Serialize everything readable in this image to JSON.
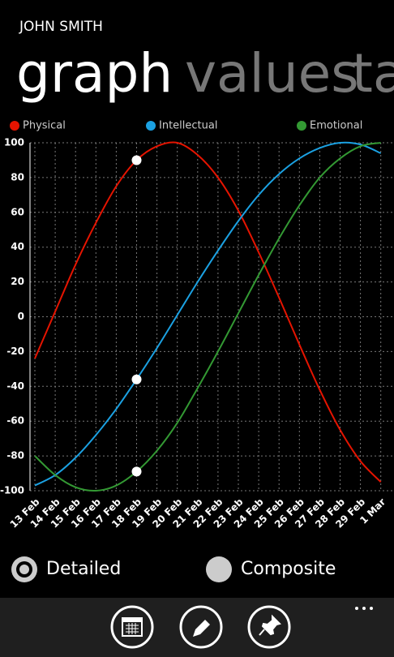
{
  "header": {
    "user": "JOHN SMITH"
  },
  "pivot": [
    "graph",
    "values",
    "ta"
  ],
  "chart_data": {
    "type": "line",
    "categories": [
      "13 Feb",
      "14 Feb",
      "15 Feb",
      "16 Feb",
      "17 Feb",
      "18 Feb",
      "19 Feb",
      "20 Feb",
      "21 Feb",
      "22 Feb",
      "23 Feb",
      "24 Feb",
      "25 Feb",
      "26 Feb",
      "27 Feb",
      "28 Feb",
      "29 Feb",
      "1 Mar"
    ],
    "series": [
      {
        "name": "Physical",
        "color": "#e51400",
        "values": [
          -24,
          3,
          30,
          54,
          75,
          90,
          98,
          100,
          93,
          80,
          61,
          37,
          11,
          -16,
          -42,
          -65,
          -83,
          -95
        ]
      },
      {
        "name": "Intellectual",
        "color": "#1ba1e2",
        "values": [
          -97,
          -91,
          -81,
          -68,
          -53,
          -36,
          -18,
          1,
          20,
          38,
          55,
          70,
          82,
          91,
          97,
          100,
          99,
          94
        ]
      },
      {
        "name": "Emotional",
        "color": "#339933",
        "values": [
          -80,
          -91,
          -98,
          -100,
          -97,
          -89,
          -77,
          -61,
          -41,
          -20,
          2,
          24,
          45,
          64,
          80,
          91,
          98,
          100
        ]
      }
    ],
    "selected_index": 5,
    "ylim": [
      -100,
      100
    ],
    "yticks": [
      -100,
      -80,
      -60,
      -40,
      -20,
      0,
      20,
      40,
      60,
      80,
      100
    ],
    "grid": true
  },
  "options": [
    {
      "label": "Detailed",
      "selected": true
    },
    {
      "label": "Composite",
      "selected": false
    }
  ]
}
